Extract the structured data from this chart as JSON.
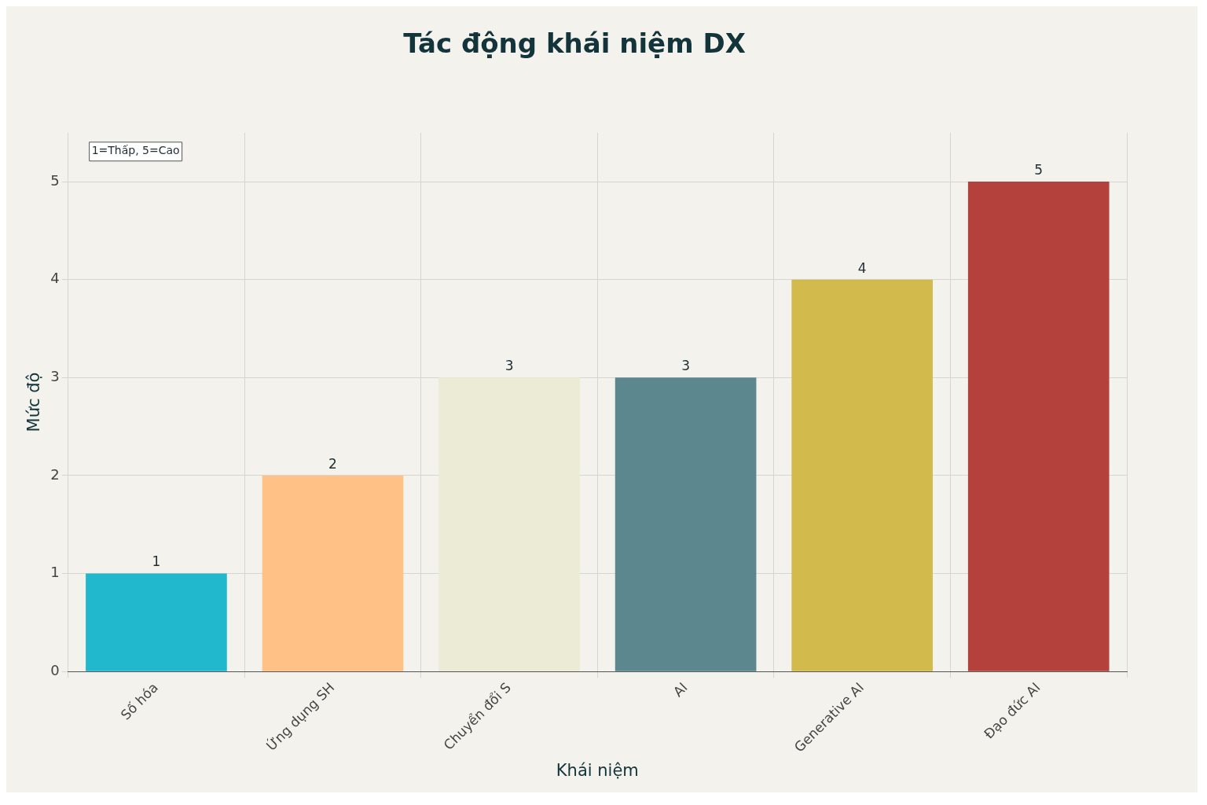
{
  "chart_data": {
    "type": "bar",
    "title": "Tác động khái niệm DX",
    "xlabel": "Khái niệm",
    "ylabel": "Mức độ",
    "categories": [
      "Số hóa",
      "Ứng dụng SH",
      "Chuyển đổi S",
      "AI",
      "Generative AI",
      "Đạo đức AI"
    ],
    "values": [
      1,
      2,
      3,
      3,
      4,
      5
    ],
    "colors": [
      "#21b8cd",
      "#ffc185",
      "#eceBd5",
      "#5d878f",
      "#d2ba4c",
      "#b4413c"
    ],
    "ylim": [
      0,
      5.5
    ],
    "yticks": [
      0,
      1,
      2,
      3,
      4,
      5
    ],
    "grid": true,
    "data_labels": true,
    "annotations": [
      "1=Thấp, 5=Cao"
    ]
  }
}
